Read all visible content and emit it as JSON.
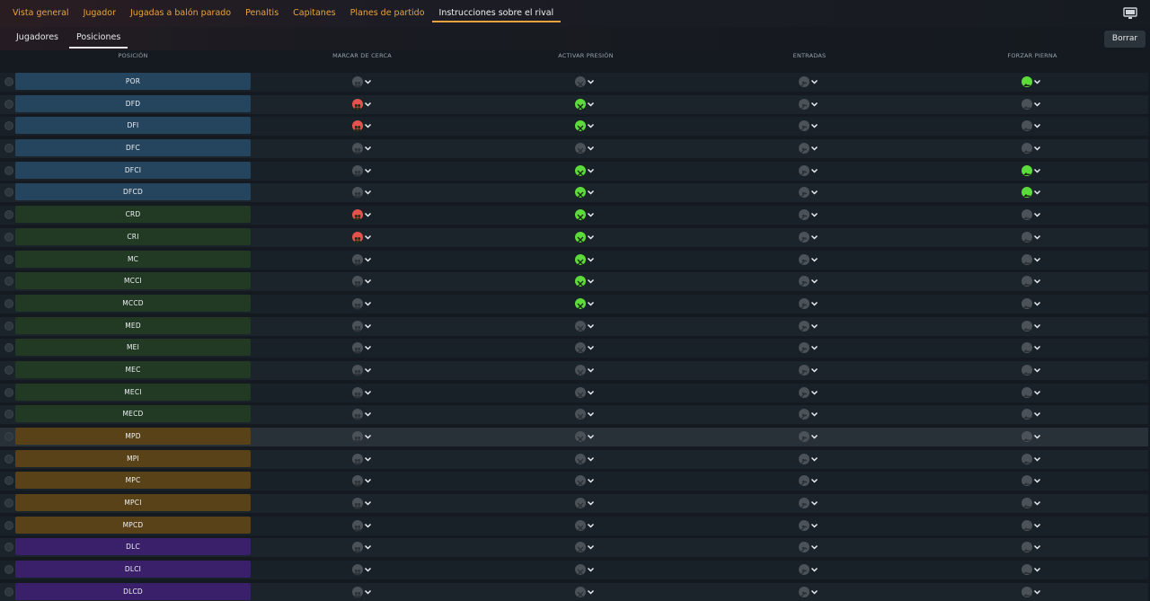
{
  "top_tabs": [
    {
      "label": "Vista general",
      "active": false
    },
    {
      "label": "Jugador",
      "active": false
    },
    {
      "label": "Jugadas a balón parado",
      "active": false
    },
    {
      "label": "Penaltis",
      "active": false
    },
    {
      "label": "Capitanes",
      "active": false
    },
    {
      "label": "Planes de partido",
      "active": false
    },
    {
      "label": "Instrucciones sobre el rival",
      "active": true
    }
  ],
  "sub_tabs": [
    {
      "label": "Jugadores",
      "active": false
    },
    {
      "label": "Posiciones",
      "active": true
    }
  ],
  "clear_button": "Borrar",
  "columns": {
    "position": "POSICIÓN",
    "close_mark": "MARCAR DE CERCA",
    "press": "ACTIVAR PRESIÓN",
    "tackles": "ENTRADAS",
    "force_foot": "FORZAR PIERNA"
  },
  "colors": {
    "accent": "#e8a33c",
    "goalkeeper_defender": "#25455f",
    "midfield_green": "#223a24",
    "wide_mid": "#5a4218",
    "forward": "#3a1f6a",
    "state_red": "#e5524d",
    "state_green": "#5ddb3a",
    "state_off": "#4c5358"
  },
  "icons": {
    "close_mark": "two-players-icon",
    "press": "press-arrows-icon",
    "tackles": "tackle-icon",
    "force_foot": "boot-icon",
    "dropdown": "chevron-down-icon",
    "row_toggle": "check-circle-icon",
    "view": "monitor-icon"
  },
  "rows": [
    {
      "pos": "POR",
      "group": "blue",
      "mark": "off",
      "press": "off",
      "tackle": "off",
      "foot": "green"
    },
    {
      "pos": "DFD",
      "group": "blue",
      "mark": "red",
      "press": "green",
      "tackle": "off",
      "foot": "off"
    },
    {
      "pos": "DFI",
      "group": "blue",
      "mark": "red",
      "press": "green",
      "tackle": "off",
      "foot": "off"
    },
    {
      "pos": "DFC",
      "group": "blue",
      "mark": "off",
      "press": "off",
      "tackle": "off",
      "foot": "off"
    },
    {
      "pos": "DFCI",
      "group": "blue",
      "mark": "off",
      "press": "green",
      "tackle": "off",
      "foot": "green"
    },
    {
      "pos": "DFCD",
      "group": "blue",
      "mark": "off",
      "press": "green",
      "tackle": "off",
      "foot": "green"
    },
    {
      "pos": "CRD",
      "group": "green",
      "mark": "red",
      "press": "green",
      "tackle": "off",
      "foot": "off"
    },
    {
      "pos": "CRI",
      "group": "green",
      "mark": "red",
      "press": "green",
      "tackle": "off",
      "foot": "off"
    },
    {
      "pos": "MC",
      "group": "green",
      "mark": "off",
      "press": "green",
      "tackle": "off",
      "foot": "off"
    },
    {
      "pos": "MCCI",
      "group": "green",
      "mark": "off",
      "press": "green",
      "tackle": "off",
      "foot": "off"
    },
    {
      "pos": "MCCD",
      "group": "green",
      "mark": "off",
      "press": "green",
      "tackle": "off",
      "foot": "off"
    },
    {
      "pos": "MED",
      "group": "green",
      "mark": "off",
      "press": "off",
      "tackle": "off",
      "foot": "off"
    },
    {
      "pos": "MEI",
      "group": "green",
      "mark": "off",
      "press": "off",
      "tackle": "off",
      "foot": "off"
    },
    {
      "pos": "MEC",
      "group": "green",
      "mark": "off",
      "press": "off",
      "tackle": "off",
      "foot": "off"
    },
    {
      "pos": "MECI",
      "group": "green",
      "mark": "off",
      "press": "off",
      "tackle": "off",
      "foot": "off"
    },
    {
      "pos": "MECD",
      "group": "green",
      "mark": "off",
      "press": "off",
      "tackle": "off",
      "foot": "off"
    },
    {
      "pos": "MPD",
      "group": "orange",
      "mark": "off",
      "press": "off",
      "tackle": "off",
      "foot": "off",
      "highlighted": true
    },
    {
      "pos": "MPI",
      "group": "orange",
      "mark": "off",
      "press": "off",
      "tackle": "off",
      "foot": "off"
    },
    {
      "pos": "MPC",
      "group": "orange",
      "mark": "off",
      "press": "off",
      "tackle": "off",
      "foot": "off"
    },
    {
      "pos": "MPCI",
      "group": "orange",
      "mark": "off",
      "press": "off",
      "tackle": "off",
      "foot": "off"
    },
    {
      "pos": "MPCD",
      "group": "orange",
      "mark": "off",
      "press": "off",
      "tackle": "off",
      "foot": "off"
    },
    {
      "pos": "DLC",
      "group": "purple",
      "mark": "off",
      "press": "off",
      "tackle": "off",
      "foot": "off"
    },
    {
      "pos": "DLCI",
      "group": "purple",
      "mark": "off",
      "press": "off",
      "tackle": "off",
      "foot": "off"
    },
    {
      "pos": "DLCD",
      "group": "purple",
      "mark": "off",
      "press": "off",
      "tackle": "off",
      "foot": "off"
    }
  ]
}
